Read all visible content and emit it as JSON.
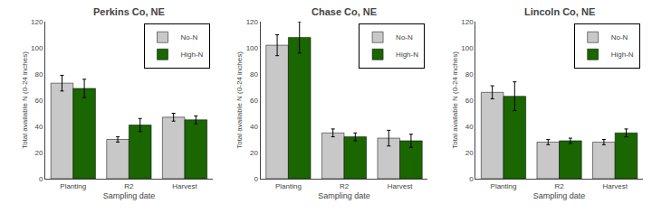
{
  "chart_data": [
    {
      "type": "bar",
      "title": "Perkins Co, NE",
      "categories": [
        "Planting",
        "R2",
        "Harvest"
      ],
      "series": [
        {
          "name": "No-N",
          "color": "#c8c8c8",
          "values": [
            73,
            30,
            47
          ],
          "errors": [
            6,
            2,
            3
          ]
        },
        {
          "name": "High-N",
          "color": "#1a6600",
          "values": [
            69,
            41,
            45
          ],
          "errors": [
            7,
            5,
            3
          ]
        }
      ],
      "xlabel": "Sampling date",
      "ylabel": "Total available N (0-24 inches)",
      "ylim": [
        0,
        120
      ],
      "yticks": [
        0,
        20,
        40,
        60,
        80,
        100,
        120
      ],
      "grid": false,
      "legend": "upper right"
    },
    {
      "type": "bar",
      "title": "Chase Co, NE",
      "categories": [
        "Planting",
        "R2",
        "Harvest"
      ],
      "series": [
        {
          "name": "No-N",
          "color": "#c8c8c8",
          "values": [
            102,
            35,
            31
          ],
          "errors": [
            8,
            3,
            6
          ]
        },
        {
          "name": "High-N",
          "color": "#1a6600",
          "values": [
            108,
            32,
            29
          ],
          "errors": [
            12,
            3,
            5
          ]
        }
      ],
      "xlabel": "Sampling date",
      "ylabel": "Total available N (0-24 inches)",
      "ylim": [
        0,
        120
      ],
      "yticks": [
        0,
        20,
        40,
        60,
        80,
        100,
        120
      ],
      "grid": false,
      "legend": "upper right"
    },
    {
      "type": "bar",
      "title": "Lincoln Co, NE",
      "categories": [
        "Planting",
        "R2",
        "Harvest"
      ],
      "series": [
        {
          "name": "No-N",
          "color": "#c8c8c8",
          "values": [
            66,
            28,
            28
          ],
          "errors": [
            5,
            2,
            2
          ]
        },
        {
          "name": "High-N",
          "color": "#1a6600",
          "values": [
            63,
            29,
            35
          ],
          "errors": [
            11,
            2,
            3
          ]
        }
      ],
      "xlabel": "Sampling date",
      "ylabel": "Total available N (0-24 inches)",
      "ylim": [
        0,
        120
      ],
      "yticks": [
        0,
        20,
        40,
        60,
        80,
        100,
        120
      ],
      "grid": false,
      "legend": "upper right"
    }
  ]
}
